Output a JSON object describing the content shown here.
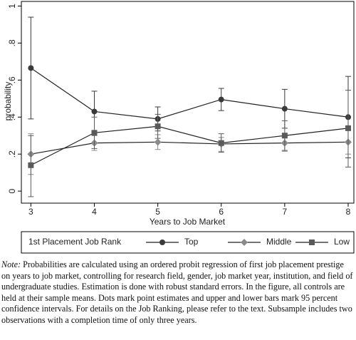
{
  "chart_data": {
    "type": "line",
    "x_label": "Years to Job Market",
    "y_label": "probability",
    "x": [
      3,
      4,
      5,
      6,
      7,
      8
    ],
    "xlim": [
      2.85,
      8.09
    ],
    "xticks": [
      3,
      4,
      5,
      6,
      7,
      8
    ],
    "ylim": [
      -0.065,
      1.025
    ],
    "yticks": [
      0,
      {
        "value": 0.2,
        "label": ".2"
      },
      {
        "value": 0.4,
        "label": ".4"
      },
      {
        "value": 0.6,
        "label": ".6"
      },
      {
        "value": 0.8,
        "label": ".8"
      },
      1
    ],
    "legend_title": "1st Placement Job Rank",
    "legend_position": "bottom",
    "series": [
      {
        "name": "Top",
        "color": "#3a3a3a",
        "marker": "circle",
        "values": [
          0.665,
          0.43,
          0.39,
          0.495,
          0.445,
          0.4
        ],
        "lower": [
          0.39,
          0.32,
          0.325,
          0.435,
          0.34,
          0.18
        ],
        "upper": [
          0.94,
          0.54,
          0.455,
          0.555,
          0.55,
          0.62
        ]
      },
      {
        "name": "Middle",
        "color": "#8a8a8a",
        "marker": "diamond",
        "values": [
          0.2,
          0.26,
          0.265,
          0.255,
          0.26,
          0.265
        ],
        "lower": [
          0.09,
          0.22,
          0.225,
          0.215,
          0.215,
          0.2
        ],
        "upper": [
          0.31,
          0.3,
          0.305,
          0.29,
          0.3,
          0.33
        ]
      },
      {
        "name": "Low",
        "color": "#5a5a5a",
        "marker": "square",
        "values": [
          0.14,
          0.315,
          0.35,
          0.26,
          0.3,
          0.34
        ],
        "lower": [
          -0.03,
          0.23,
          0.285,
          0.21,
          0.22,
          0.13
        ],
        "upper": [
          0.3,
          0.4,
          0.415,
          0.31,
          0.38,
          0.545
        ]
      }
    ]
  },
  "note": {
    "label": "Note:",
    "text": "Probabilities are calculated using an ordered probit regression of first job placement prestige on years to job market, controlling for research field, gender, job market year, institution, and field of undergraduate studies. Estimation is done with robust standard errors. In the figure, all controls are held at their sample means. Dots mark point estimates and upper and lower bars mark 95 percent confidence intervals. For details on the Job Ranking, please refer to the text. Subsample includes two observations with a completion time of only three years."
  }
}
